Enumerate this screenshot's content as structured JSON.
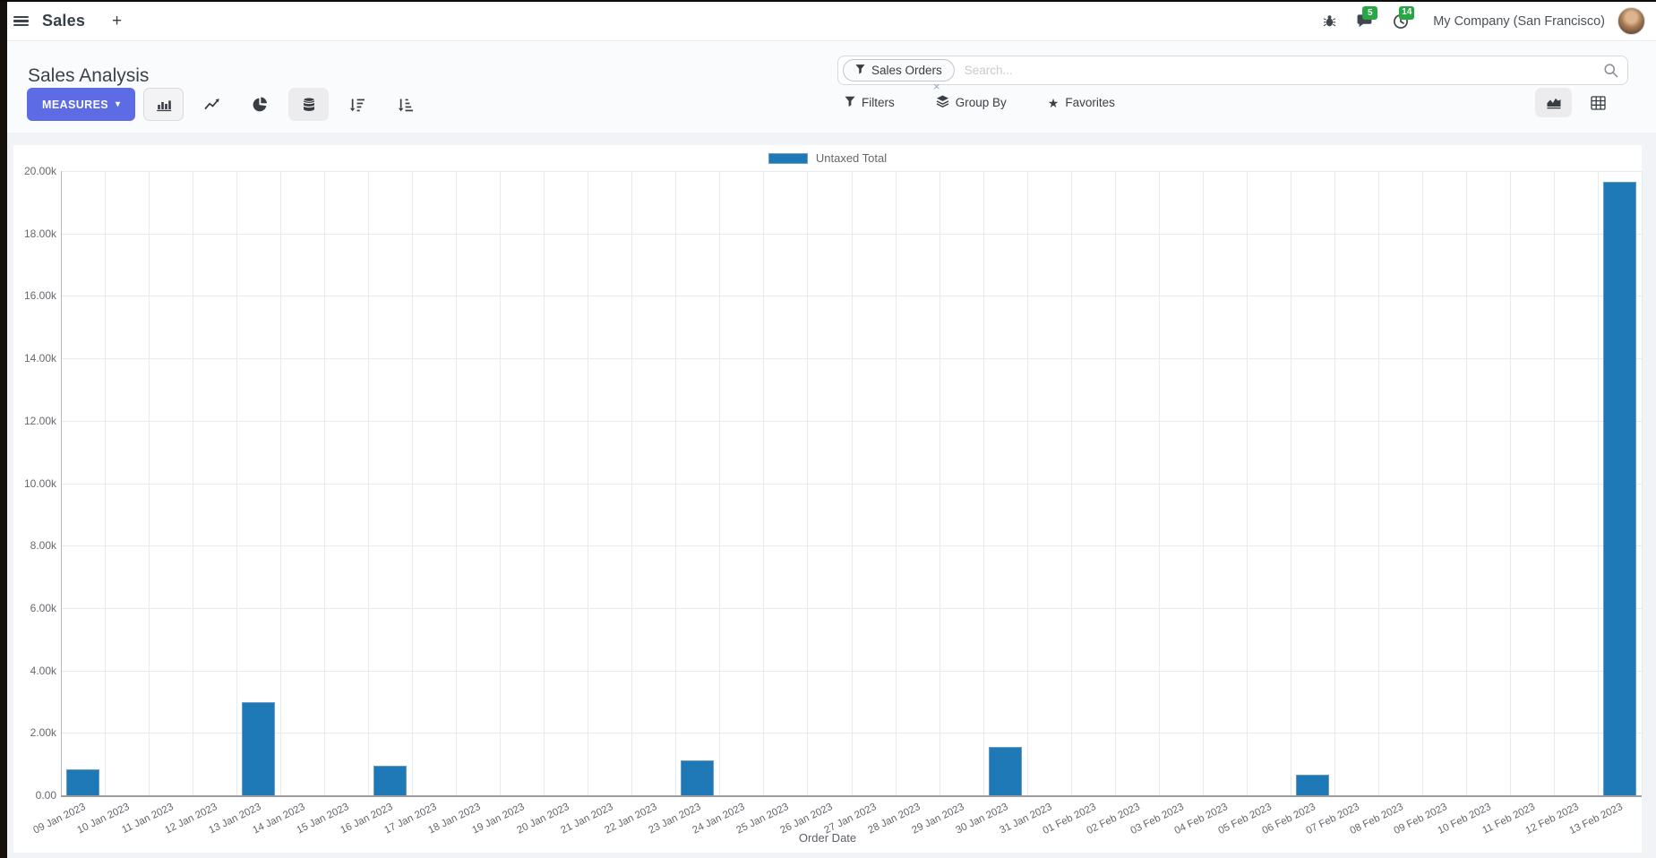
{
  "theme": {
    "accent": "#5d6be4",
    "bar_color": "#1f79b7",
    "badge_green": "#28a745",
    "navbar_bg": "#ffffff",
    "page_bg": "#f2f3f6"
  },
  "navbar": {
    "app_title": "Sales",
    "plus_label": "+",
    "messages_badge": "5",
    "activities_badge": "14",
    "company": "My Company (San Francisco)"
  },
  "control_panel": {
    "title": "Sales Analysis",
    "measures_label": "MEASURES",
    "measures_caret": "▾",
    "search": {
      "facet_label": "Sales Orders",
      "facet_remove": "×",
      "placeholder": "Search..."
    },
    "filters_label": "Filters",
    "group_by_label": "Group By",
    "favorites_label": "Favorites",
    "favorites_star": "★"
  },
  "chart_data": {
    "type": "bar",
    "title": "",
    "xlabel": "Order Date",
    "ylabel": "",
    "ylim": [
      0,
      20000
    ],
    "ytick_step": 2000,
    "ytick_labels": [
      "0.00",
      "2.00k",
      "4.00k",
      "6.00k",
      "8.00k",
      "10.00k",
      "12.00k",
      "14.00k",
      "16.00k",
      "18.00k",
      "20.00k"
    ],
    "grid": true,
    "legend_position": "top",
    "categories": [
      "09 Jan 2023",
      "10 Jan 2023",
      "11 Jan 2023",
      "12 Jan 2023",
      "13 Jan 2023",
      "14 Jan 2023",
      "15 Jan 2023",
      "16 Jan 2023",
      "17 Jan 2023",
      "18 Jan 2023",
      "19 Jan 2023",
      "20 Jan 2023",
      "21 Jan 2023",
      "22 Jan 2023",
      "23 Jan 2023",
      "24 Jan 2023",
      "25 Jan 2023",
      "26 Jan 2023",
      "27 Jan 2023",
      "28 Jan 2023",
      "29 Jan 2023",
      "30 Jan 2023",
      "31 Jan 2023",
      "01 Feb 2023",
      "02 Feb 2023",
      "03 Feb 2023",
      "04 Feb 2023",
      "05 Feb 2023",
      "06 Feb 2023",
      "07 Feb 2023",
      "08 Feb 2023",
      "09 Feb 2023",
      "10 Feb 2023",
      "11 Feb 2023",
      "12 Feb 2023",
      "13 Feb 2023"
    ],
    "series": [
      {
        "name": "Untaxed Total",
        "values": [
          832,
          0,
          0,
          0,
          2977,
          0,
          0,
          954,
          0,
          0,
          0,
          0,
          0,
          0,
          1127,
          0,
          0,
          0,
          0,
          0,
          0,
          1561,
          0,
          0,
          0,
          0,
          0,
          0,
          665,
          0,
          0,
          0,
          0,
          0,
          0,
          19656
        ]
      }
    ]
  }
}
